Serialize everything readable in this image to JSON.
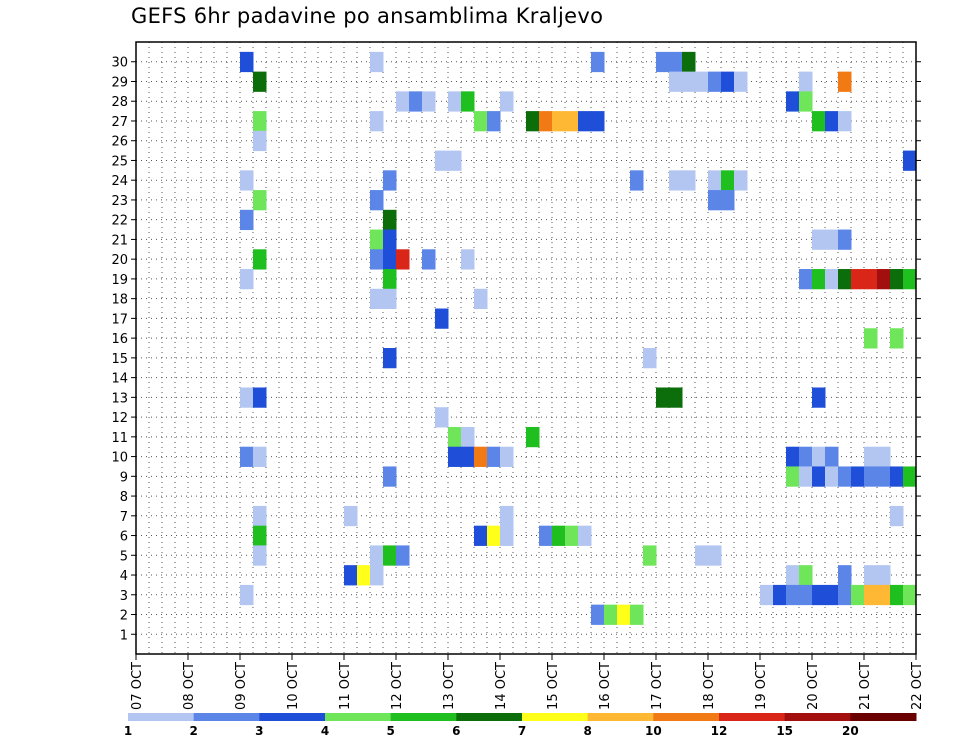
{
  "chart_data": {
    "type": "heatmap",
    "title": "GEFS 6hr padavine po ansamblima Kraljevo",
    "y_ticks": [
      "1",
      "2",
      "3",
      "4",
      "5",
      "6",
      "7",
      "8",
      "9",
      "10",
      "11",
      "12",
      "13",
      "14",
      "15",
      "16",
      "17",
      "18",
      "19",
      "20",
      "21",
      "22",
      "23",
      "24",
      "25",
      "26",
      "27",
      "28",
      "29",
      "30"
    ],
    "x_ticks": [
      "07 OCT",
      "08 OCT",
      "09 OCT",
      "10 OCT",
      "11 OCT",
      "12 OCT",
      "13 OCT",
      "14 OCT",
      "15 OCT",
      "16 OCT",
      "17 OCT",
      "18 OCT",
      "19 OCT",
      "20 OCT",
      "21 OCT",
      "22 OCT"
    ],
    "grid": true,
    "colorbar": {
      "levels": [
        "1",
        "2",
        "3",
        "4",
        "5",
        "6",
        "7",
        "8",
        "10",
        "12",
        "15",
        "20"
      ],
      "colors": [
        "#b3c6f2",
        "#5b86e8",
        "#1f4fd9",
        "#6fe65a",
        "#1fbf1f",
        "#0b6e0b",
        "#ffff1a",
        "#ffb833",
        "#f27a14",
        "#d92618",
        "#a30f0f",
        "#6b0000"
      ]
    },
    "cells": [
      {
        "m": 30,
        "d": "09 OCT",
        "h": 0,
        "c": 2
      },
      {
        "m": 30,
        "d": "11 OCT",
        "h": 12,
        "c": 0
      },
      {
        "m": 30,
        "d": "15 OCT",
        "h": 18,
        "c": 1
      },
      {
        "m": 30,
        "d": "17 OCT",
        "h": 0,
        "c": 1
      },
      {
        "m": 30,
        "d": "17 OCT",
        "h": 6,
        "c": 1
      },
      {
        "m": 30,
        "d": "17 OCT",
        "h": 12,
        "c": 5
      },
      {
        "m": 29,
        "d": "09 OCT",
        "h": 6,
        "c": 5
      },
      {
        "m": 29,
        "d": "17 OCT",
        "h": 6,
        "c": 0
      },
      {
        "m": 29,
        "d": "17 OCT",
        "h": 12,
        "c": 0
      },
      {
        "m": 29,
        "d": "17 OCT",
        "h": 18,
        "c": 0
      },
      {
        "m": 29,
        "d": "18 OCT",
        "h": 0,
        "c": 1
      },
      {
        "m": 29,
        "d": "18 OCT",
        "h": 6,
        "c": 2
      },
      {
        "m": 29,
        "d": "18 OCT",
        "h": 12,
        "c": 0
      },
      {
        "m": 29,
        "d": "19 OCT",
        "h": 18,
        "c": 0
      },
      {
        "m": 29,
        "d": "20 OCT",
        "h": 12,
        "c": 8
      },
      {
        "m": 28,
        "d": "12 OCT",
        "h": 0,
        "c": 0
      },
      {
        "m": 28,
        "d": "12 OCT",
        "h": 6,
        "c": 1
      },
      {
        "m": 28,
        "d": "12 OCT",
        "h": 12,
        "c": 0
      },
      {
        "m": 28,
        "d": "13 OCT",
        "h": 0,
        "c": 0
      },
      {
        "m": 28,
        "d": "13 OCT",
        "h": 6,
        "c": 4
      },
      {
        "m": 28,
        "d": "14 OCT",
        "h": 0,
        "c": 0
      },
      {
        "m": 28,
        "d": "19 OCT",
        "h": 12,
        "c": 2
      },
      {
        "m": 28,
        "d": "19 OCT",
        "h": 18,
        "c": 3
      },
      {
        "m": 27,
        "d": "09 OCT",
        "h": 6,
        "c": 3
      },
      {
        "m": 27,
        "d": "11 OCT",
        "h": 12,
        "c": 0
      },
      {
        "m": 27,
        "d": "13 OCT",
        "h": 12,
        "c": 3
      },
      {
        "m": 27,
        "d": "13 OCT",
        "h": 18,
        "c": 1
      },
      {
        "m": 27,
        "d": "14 OCT",
        "h": 12,
        "c": 5
      },
      {
        "m": 27,
        "d": "14 OCT",
        "h": 18,
        "c": 8
      },
      {
        "m": 27,
        "d": "15 OCT",
        "h": 0,
        "c": 7
      },
      {
        "m": 27,
        "d": "15 OCT",
        "h": 6,
        "c": 7
      },
      {
        "m": 27,
        "d": "15 OCT",
        "h": 12,
        "c": 2
      },
      {
        "m": 27,
        "d": "15 OCT",
        "h": 18,
        "c": 2
      },
      {
        "m": 27,
        "d": "20 OCT",
        "h": 0,
        "c": 4
      },
      {
        "m": 27,
        "d": "20 OCT",
        "h": 6,
        "c": 2
      },
      {
        "m": 27,
        "d": "20 OCT",
        "h": 12,
        "c": 0
      },
      {
        "m": 26,
        "d": "09 OCT",
        "h": 6,
        "c": 0
      },
      {
        "m": 25,
        "d": "12 OCT",
        "h": 18,
        "c": 0
      },
      {
        "m": 25,
        "d": "13 OCT",
        "h": 0,
        "c": 0
      },
      {
        "m": 25,
        "d": "21 OCT",
        "h": 18,
        "c": 2
      },
      {
        "m": 24,
        "d": "09 OCT",
        "h": 0,
        "c": 0
      },
      {
        "m": 24,
        "d": "11 OCT",
        "h": 18,
        "c": 1
      },
      {
        "m": 24,
        "d": "16 OCT",
        "h": 12,
        "c": 1
      },
      {
        "m": 24,
        "d": "17 OCT",
        "h": 6,
        "c": 0
      },
      {
        "m": 24,
        "d": "17 OCT",
        "h": 12,
        "c": 0
      },
      {
        "m": 24,
        "d": "18 OCT",
        "h": 0,
        "c": 0
      },
      {
        "m": 24,
        "d": "18 OCT",
        "h": 6,
        "c": 4
      },
      {
        "m": 24,
        "d": "18 OCT",
        "h": 12,
        "c": 0
      },
      {
        "m": 23,
        "d": "09 OCT",
        "h": 6,
        "c": 3
      },
      {
        "m": 23,
        "d": "11 OCT",
        "h": 12,
        "c": 1
      },
      {
        "m": 23,
        "d": "18 OCT",
        "h": 0,
        "c": 1
      },
      {
        "m": 23,
        "d": "18 OCT",
        "h": 6,
        "c": 1
      },
      {
        "m": 22,
        "d": "09 OCT",
        "h": 0,
        "c": 1
      },
      {
        "m": 22,
        "d": "11 OCT",
        "h": 18,
        "c": 5
      },
      {
        "m": 21,
        "d": "11 OCT",
        "h": 12,
        "c": 3
      },
      {
        "m": 21,
        "d": "11 OCT",
        "h": 18,
        "c": 2
      },
      {
        "m": 21,
        "d": "20 OCT",
        "h": 0,
        "c": 0
      },
      {
        "m": 21,
        "d": "20 OCT",
        "h": 6,
        "c": 0
      },
      {
        "m": 21,
        "d": "20 OCT",
        "h": 12,
        "c": 1
      },
      {
        "m": 20,
        "d": "09 OCT",
        "h": 6,
        "c": 4
      },
      {
        "m": 20,
        "d": "11 OCT",
        "h": 12,
        "c": 1
      },
      {
        "m": 20,
        "d": "11 OCT",
        "h": 18,
        "c": 2
      },
      {
        "m": 20,
        "d": "12 OCT",
        "h": 0,
        "c": 9
      },
      {
        "m": 20,
        "d": "12 OCT",
        "h": 12,
        "c": 1
      },
      {
        "m": 20,
        "d": "13 OCT",
        "h": 6,
        "c": 0
      },
      {
        "m": 19,
        "d": "09 OCT",
        "h": 0,
        "c": 0
      },
      {
        "m": 19,
        "d": "11 OCT",
        "h": 18,
        "c": 4
      },
      {
        "m": 19,
        "d": "19 OCT",
        "h": 18,
        "c": 1
      },
      {
        "m": 19,
        "d": "20 OCT",
        "h": 0,
        "c": 4
      },
      {
        "m": 19,
        "d": "20 OCT",
        "h": 6,
        "c": 0
      },
      {
        "m": 19,
        "d": "20 OCT",
        "h": 12,
        "c": 5
      },
      {
        "m": 19,
        "d": "20 OCT",
        "h": 18,
        "c": 9
      },
      {
        "m": 19,
        "d": "21 OCT",
        "h": 0,
        "c": 9
      },
      {
        "m": 19,
        "d": "21 OCT",
        "h": 6,
        "c": 10
      },
      {
        "m": 19,
        "d": "21 OCT",
        "h": 12,
        "c": 5
      },
      {
        "m": 19,
        "d": "21 OCT",
        "h": 18,
        "c": 4
      },
      {
        "m": 18,
        "d": "11 OCT",
        "h": 12,
        "c": 0
      },
      {
        "m": 18,
        "d": "11 OCT",
        "h": 18,
        "c": 0
      },
      {
        "m": 18,
        "d": "13 OCT",
        "h": 12,
        "c": 0
      },
      {
        "m": 17,
        "d": "12 OCT",
        "h": 18,
        "c": 2
      },
      {
        "m": 15,
        "d": "11 OCT",
        "h": 18,
        "c": 2
      },
      {
        "m": 15,
        "d": "16 OCT",
        "h": 18,
        "c": 0
      },
      {
        "m": 16,
        "d": "21 OCT",
        "h": 0,
        "c": 3
      },
      {
        "m": 16,
        "d": "21 OCT",
        "h": 12,
        "c": 3
      },
      {
        "m": 13,
        "d": "09 OCT",
        "h": 0,
        "c": 0
      },
      {
        "m": 13,
        "d": "09 OCT",
        "h": 6,
        "c": 2
      },
      {
        "m": 13,
        "d": "17 OCT",
        "h": 0,
        "c": 5
      },
      {
        "m": 13,
        "d": "17 OCT",
        "h": 6,
        "c": 5
      },
      {
        "m": 13,
        "d": "20 OCT",
        "h": 0,
        "c": 2
      },
      {
        "m": 12,
        "d": "12 OCT",
        "h": 18,
        "c": 0
      },
      {
        "m": 11,
        "d": "13 OCT",
        "h": 0,
        "c": 3
      },
      {
        "m": 11,
        "d": "13 OCT",
        "h": 6,
        "c": 0
      },
      {
        "m": 11,
        "d": "14 OCT",
        "h": 12,
        "c": 4
      },
      {
        "m": 10,
        "d": "09 OCT",
        "h": 0,
        "c": 1
      },
      {
        "m": 10,
        "d": "09 OCT",
        "h": 6,
        "c": 0
      },
      {
        "m": 10,
        "d": "13 OCT",
        "h": 0,
        "c": 2
      },
      {
        "m": 10,
        "d": "13 OCT",
        "h": 6,
        "c": 2
      },
      {
        "m": 10,
        "d": "13 OCT",
        "h": 12,
        "c": 8
      },
      {
        "m": 10,
        "d": "13 OCT",
        "h": 18,
        "c": 1
      },
      {
        "m": 10,
        "d": "14 OCT",
        "h": 0,
        "c": 0
      },
      {
        "m": 10,
        "d": "19 OCT",
        "h": 12,
        "c": 2
      },
      {
        "m": 10,
        "d": "19 OCT",
        "h": 18,
        "c": 1
      },
      {
        "m": 10,
        "d": "20 OCT",
        "h": 0,
        "c": 0
      },
      {
        "m": 10,
        "d": "20 OCT",
        "h": 6,
        "c": 1
      },
      {
        "m": 10,
        "d": "21 OCT",
        "h": 0,
        "c": 0
      },
      {
        "m": 10,
        "d": "21 OCT",
        "h": 6,
        "c": 0
      },
      {
        "m": 9,
        "d": "11 OCT",
        "h": 18,
        "c": 1
      },
      {
        "m": 9,
        "d": "19 OCT",
        "h": 12,
        "c": 3
      },
      {
        "m": 9,
        "d": "19 OCT",
        "h": 18,
        "c": 0
      },
      {
        "m": 9,
        "d": "20 OCT",
        "h": 0,
        "c": 2
      },
      {
        "m": 9,
        "d": "20 OCT",
        "h": 6,
        "c": 0
      },
      {
        "m": 9,
        "d": "20 OCT",
        "h": 12,
        "c": 1
      },
      {
        "m": 9,
        "d": "20 OCT",
        "h": 18,
        "c": 2
      },
      {
        "m": 9,
        "d": "21 OCT",
        "h": 0,
        "c": 1
      },
      {
        "m": 9,
        "d": "21 OCT",
        "h": 6,
        "c": 1
      },
      {
        "m": 9,
        "d": "21 OCT",
        "h": 12,
        "c": 2
      },
      {
        "m": 9,
        "d": "21 OCT",
        "h": 18,
        "c": 4
      },
      {
        "m": 7,
        "d": "09 OCT",
        "h": 6,
        "c": 0
      },
      {
        "m": 7,
        "d": "11 OCT",
        "h": 0,
        "c": 0
      },
      {
        "m": 7,
        "d": "14 OCT",
        "h": 0,
        "c": 0
      },
      {
        "m": 7,
        "d": "21 OCT",
        "h": 12,
        "c": 0
      },
      {
        "m": 6,
        "d": "09 OCT",
        "h": 6,
        "c": 4
      },
      {
        "m": 6,
        "d": "13 OCT",
        "h": 12,
        "c": 2
      },
      {
        "m": 6,
        "d": "13 OCT",
        "h": 18,
        "c": 6
      },
      {
        "m": 6,
        "d": "14 OCT",
        "h": 0,
        "c": 0
      },
      {
        "m": 6,
        "d": "14 OCT",
        "h": 18,
        "c": 1
      },
      {
        "m": 6,
        "d": "15 OCT",
        "h": 0,
        "c": 4
      },
      {
        "m": 6,
        "d": "15 OCT",
        "h": 6,
        "c": 3
      },
      {
        "m": 6,
        "d": "15 OCT",
        "h": 12,
        "c": 0
      },
      {
        "m": 5,
        "d": "09 OCT",
        "h": 6,
        "c": 0
      },
      {
        "m": 5,
        "d": "11 OCT",
        "h": 12,
        "c": 0
      },
      {
        "m": 5,
        "d": "11 OCT",
        "h": 18,
        "c": 4
      },
      {
        "m": 5,
        "d": "12 OCT",
        "h": 0,
        "c": 1
      },
      {
        "m": 5,
        "d": "16 OCT",
        "h": 18,
        "c": 3
      },
      {
        "m": 5,
        "d": "17 OCT",
        "h": 18,
        "c": 0
      },
      {
        "m": 5,
        "d": "18 OCT",
        "h": 0,
        "c": 0
      },
      {
        "m": 4,
        "d": "11 OCT",
        "h": 0,
        "c": 2
      },
      {
        "m": 4,
        "d": "11 OCT",
        "h": 6,
        "c": 6
      },
      {
        "m": 4,
        "d": "11 OCT",
        "h": 12,
        "c": 0
      },
      {
        "m": 4,
        "d": "19 OCT",
        "h": 12,
        "c": 0
      },
      {
        "m": 4,
        "d": "19 OCT",
        "h": 18,
        "c": 3
      },
      {
        "m": 4,
        "d": "20 OCT",
        "h": 12,
        "c": 1
      },
      {
        "m": 4,
        "d": "21 OCT",
        "h": 0,
        "c": 0
      },
      {
        "m": 4,
        "d": "21 OCT",
        "h": 6,
        "c": 0
      },
      {
        "m": 3,
        "d": "09 OCT",
        "h": 0,
        "c": 0
      },
      {
        "m": 3,
        "d": "19 OCT",
        "h": 0,
        "c": 0
      },
      {
        "m": 3,
        "d": "19 OCT",
        "h": 6,
        "c": 2
      },
      {
        "m": 3,
        "d": "19 OCT",
        "h": 12,
        "c": 1
      },
      {
        "m": 3,
        "d": "19 OCT",
        "h": 18,
        "c": 1
      },
      {
        "m": 3,
        "d": "20 OCT",
        "h": 0,
        "c": 2
      },
      {
        "m": 3,
        "d": "20 OCT",
        "h": 6,
        "c": 2
      },
      {
        "m": 3,
        "d": "20 OCT",
        "h": 12,
        "c": 1
      },
      {
        "m": 3,
        "d": "20 OCT",
        "h": 18,
        "c": 3
      },
      {
        "m": 3,
        "d": "21 OCT",
        "h": 0,
        "c": 7
      },
      {
        "m": 3,
        "d": "21 OCT",
        "h": 6,
        "c": 7
      },
      {
        "m": 3,
        "d": "21 OCT",
        "h": 12,
        "c": 4
      },
      {
        "m": 3,
        "d": "21 OCT",
        "h": 18,
        "c": 3
      },
      {
        "m": 2,
        "d": "15 OCT",
        "h": 18,
        "c": 1
      },
      {
        "m": 2,
        "d": "16 OCT",
        "h": 0,
        "c": 3
      },
      {
        "m": 2,
        "d": "16 OCT",
        "h": 6,
        "c": 6
      },
      {
        "m": 2,
        "d": "16 OCT",
        "h": 12,
        "c": 3
      }
    ]
  }
}
